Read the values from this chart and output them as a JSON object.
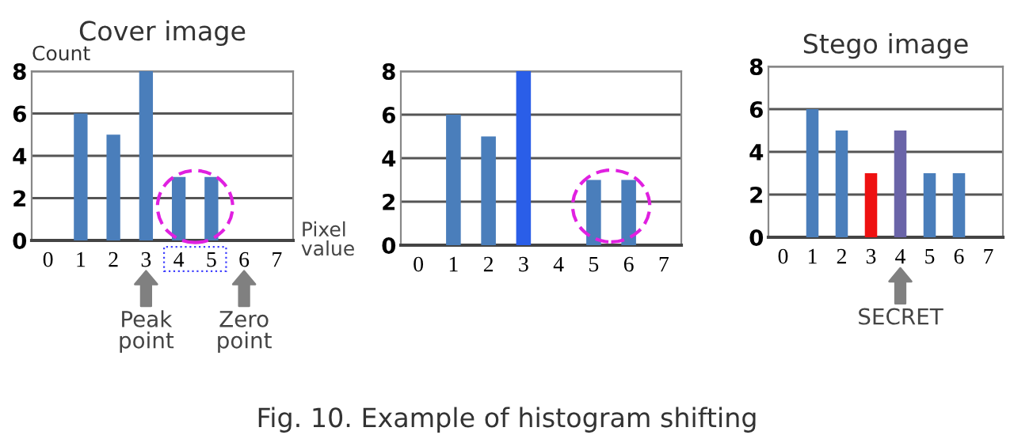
{
  "chart_data": [
    {
      "type": "bar",
      "title": "Cover image",
      "ylabel": "Count",
      "xlabel": "Pixel\nvalue",
      "categories": [
        "0",
        "1",
        "2",
        "3",
        "4",
        "5",
        "6",
        "7"
      ],
      "values": [
        0,
        6,
        5,
        8,
        3,
        3,
        0,
        0
      ],
      "color": "#4a7ebb",
      "ylim": [
        0,
        8
      ],
      "yticks": [
        0,
        2,
        4,
        6,
        8
      ],
      "grid": "y",
      "annotations": [
        "Peak\npoint",
        "Zero\npoint"
      ]
    },
    {
      "type": "bar",
      "categories": [
        "0",
        "1",
        "2",
        "3",
        "4",
        "5",
        "6",
        "7"
      ],
      "values": [
        0,
        6,
        5,
        8,
        0,
        3,
        3,
        0
      ],
      "colors": [
        "#4a7ebb",
        "#4a7ebb",
        "#4a7ebb",
        "#2a5ee8",
        "#4a7ebb",
        "#4a7ebb",
        "#4a7ebb",
        "#4a7ebb"
      ],
      "ylim": [
        0,
        8
      ],
      "yticks": [
        0,
        2,
        4,
        6,
        8
      ],
      "grid": "y",
      "annotations": [
        "Fig. 10. Example of histogram shifting"
      ]
    },
    {
      "type": "bar",
      "title": "Stego image",
      "categories": [
        "0",
        "1",
        "2",
        "3",
        "4",
        "5",
        "6",
        "7"
      ],
      "values": [
        0,
        6,
        5,
        3,
        5,
        3,
        3,
        0
      ],
      "colors": [
        "#4a7ebb",
        "#4a7ebb",
        "#4a7ebb",
        "#ee1111",
        "#6a64a8",
        "#4a7ebb",
        "#4a7ebb",
        "#4a7ebb"
      ],
      "ylim": [
        0,
        8
      ],
      "yticks": [
        0,
        2,
        4,
        6,
        8
      ],
      "grid": "y",
      "annotations": [
        "SECRET"
      ]
    }
  ]
}
